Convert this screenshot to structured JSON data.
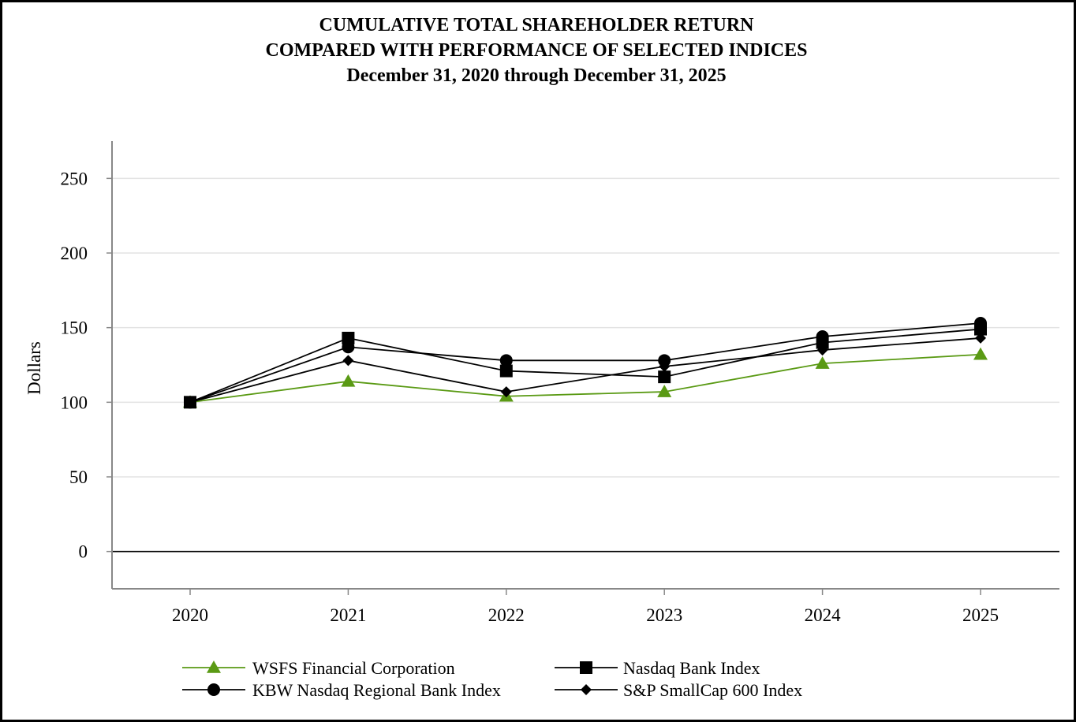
{
  "chart_data": {
    "type": "line",
    "title": [
      "CUMULATIVE TOTAL SHAREHOLDER RETURN",
      "COMPARED WITH PERFORMANCE OF SELECTED INDICES",
      "December 31, 2020 through December 31, 2025"
    ],
    "xlabel": "",
    "ylabel": "Dollars",
    "categories": [
      "2020",
      "2021",
      "2022",
      "2023",
      "2024",
      "2025"
    ],
    "ylim": [
      -25,
      275
    ],
    "yticks": [
      0,
      50,
      100,
      150,
      200,
      250
    ],
    "grid": true,
    "legend_position": "bottom",
    "series": [
      {
        "name": "WSFS Financial Corporation",
        "marker": "triangle",
        "color": "#5a9a14",
        "values": [
          100,
          114,
          104,
          107,
          126,
          132
        ]
      },
      {
        "name": "Nasdaq Bank Index",
        "marker": "square",
        "color": "#000000",
        "values": [
          100,
          143,
          121,
          117,
          140,
          149
        ]
      },
      {
        "name": "KBW Nasdaq Regional Bank Index",
        "marker": "circle",
        "color": "#000000",
        "values": [
          100,
          137,
          128,
          128,
          144,
          153
        ]
      },
      {
        "name": "S&P SmallCap 600 Index",
        "marker": "diamond",
        "color": "#000000",
        "values": [
          100,
          128,
          107,
          124,
          135,
          143
        ]
      }
    ],
    "colors": {
      "grid": "#e3e3e3",
      "axis": "#888888",
      "zero_line": "#000000"
    }
  }
}
